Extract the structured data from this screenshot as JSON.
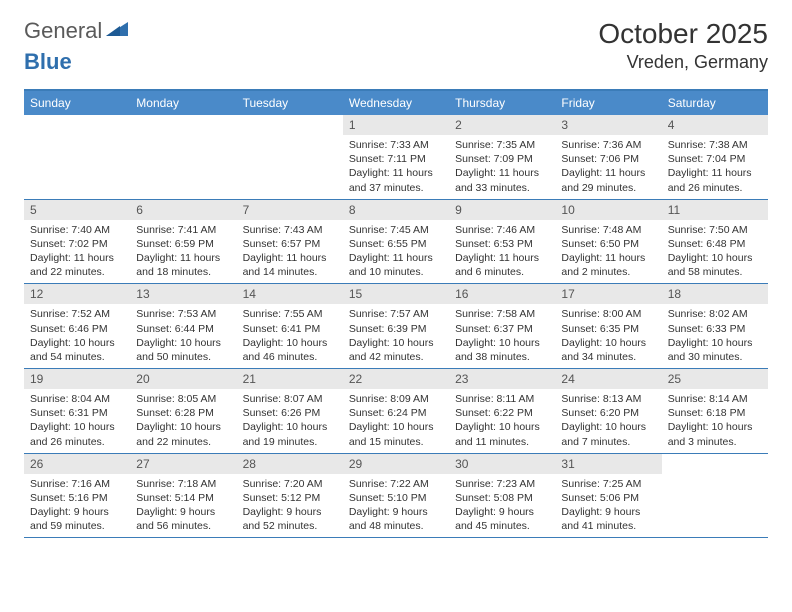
{
  "logo": {
    "text_gray": "General",
    "text_blue": "Blue",
    "gray_color": "#5a5a5a",
    "blue_color": "#2f6fad"
  },
  "title": {
    "month": "October 2025",
    "location": "Vreden, Germany"
  },
  "colors": {
    "header_bg": "#4a8ac9",
    "header_border": "#3b7cb8",
    "date_bg": "#e8e8e8",
    "text": "#333333"
  },
  "day_names": [
    "Sunday",
    "Monday",
    "Tuesday",
    "Wednesday",
    "Thursday",
    "Friday",
    "Saturday"
  ],
  "weeks": [
    [
      {
        "date": "",
        "sunrise": "",
        "sunset": "",
        "daylight": ""
      },
      {
        "date": "",
        "sunrise": "",
        "sunset": "",
        "daylight": ""
      },
      {
        "date": "",
        "sunrise": "",
        "sunset": "",
        "daylight": ""
      },
      {
        "date": "1",
        "sunrise": "Sunrise: 7:33 AM",
        "sunset": "Sunset: 7:11 PM",
        "daylight": "Daylight: 11 hours and 37 minutes."
      },
      {
        "date": "2",
        "sunrise": "Sunrise: 7:35 AM",
        "sunset": "Sunset: 7:09 PM",
        "daylight": "Daylight: 11 hours and 33 minutes."
      },
      {
        "date": "3",
        "sunrise": "Sunrise: 7:36 AM",
        "sunset": "Sunset: 7:06 PM",
        "daylight": "Daylight: 11 hours and 29 minutes."
      },
      {
        "date": "4",
        "sunrise": "Sunrise: 7:38 AM",
        "sunset": "Sunset: 7:04 PM",
        "daylight": "Daylight: 11 hours and 26 minutes."
      }
    ],
    [
      {
        "date": "5",
        "sunrise": "Sunrise: 7:40 AM",
        "sunset": "Sunset: 7:02 PM",
        "daylight": "Daylight: 11 hours and 22 minutes."
      },
      {
        "date": "6",
        "sunrise": "Sunrise: 7:41 AM",
        "sunset": "Sunset: 6:59 PM",
        "daylight": "Daylight: 11 hours and 18 minutes."
      },
      {
        "date": "7",
        "sunrise": "Sunrise: 7:43 AM",
        "sunset": "Sunset: 6:57 PM",
        "daylight": "Daylight: 11 hours and 14 minutes."
      },
      {
        "date": "8",
        "sunrise": "Sunrise: 7:45 AM",
        "sunset": "Sunset: 6:55 PM",
        "daylight": "Daylight: 11 hours and 10 minutes."
      },
      {
        "date": "9",
        "sunrise": "Sunrise: 7:46 AM",
        "sunset": "Sunset: 6:53 PM",
        "daylight": "Daylight: 11 hours and 6 minutes."
      },
      {
        "date": "10",
        "sunrise": "Sunrise: 7:48 AM",
        "sunset": "Sunset: 6:50 PM",
        "daylight": "Daylight: 11 hours and 2 minutes."
      },
      {
        "date": "11",
        "sunrise": "Sunrise: 7:50 AM",
        "sunset": "Sunset: 6:48 PM",
        "daylight": "Daylight: 10 hours and 58 minutes."
      }
    ],
    [
      {
        "date": "12",
        "sunrise": "Sunrise: 7:52 AM",
        "sunset": "Sunset: 6:46 PM",
        "daylight": "Daylight: 10 hours and 54 minutes."
      },
      {
        "date": "13",
        "sunrise": "Sunrise: 7:53 AM",
        "sunset": "Sunset: 6:44 PM",
        "daylight": "Daylight: 10 hours and 50 minutes."
      },
      {
        "date": "14",
        "sunrise": "Sunrise: 7:55 AM",
        "sunset": "Sunset: 6:41 PM",
        "daylight": "Daylight: 10 hours and 46 minutes."
      },
      {
        "date": "15",
        "sunrise": "Sunrise: 7:57 AM",
        "sunset": "Sunset: 6:39 PM",
        "daylight": "Daylight: 10 hours and 42 minutes."
      },
      {
        "date": "16",
        "sunrise": "Sunrise: 7:58 AM",
        "sunset": "Sunset: 6:37 PM",
        "daylight": "Daylight: 10 hours and 38 minutes."
      },
      {
        "date": "17",
        "sunrise": "Sunrise: 8:00 AM",
        "sunset": "Sunset: 6:35 PM",
        "daylight": "Daylight: 10 hours and 34 minutes."
      },
      {
        "date": "18",
        "sunrise": "Sunrise: 8:02 AM",
        "sunset": "Sunset: 6:33 PM",
        "daylight": "Daylight: 10 hours and 30 minutes."
      }
    ],
    [
      {
        "date": "19",
        "sunrise": "Sunrise: 8:04 AM",
        "sunset": "Sunset: 6:31 PM",
        "daylight": "Daylight: 10 hours and 26 minutes."
      },
      {
        "date": "20",
        "sunrise": "Sunrise: 8:05 AM",
        "sunset": "Sunset: 6:28 PM",
        "daylight": "Daylight: 10 hours and 22 minutes."
      },
      {
        "date": "21",
        "sunrise": "Sunrise: 8:07 AM",
        "sunset": "Sunset: 6:26 PM",
        "daylight": "Daylight: 10 hours and 19 minutes."
      },
      {
        "date": "22",
        "sunrise": "Sunrise: 8:09 AM",
        "sunset": "Sunset: 6:24 PM",
        "daylight": "Daylight: 10 hours and 15 minutes."
      },
      {
        "date": "23",
        "sunrise": "Sunrise: 8:11 AM",
        "sunset": "Sunset: 6:22 PM",
        "daylight": "Daylight: 10 hours and 11 minutes."
      },
      {
        "date": "24",
        "sunrise": "Sunrise: 8:13 AM",
        "sunset": "Sunset: 6:20 PM",
        "daylight": "Daylight: 10 hours and 7 minutes."
      },
      {
        "date": "25",
        "sunrise": "Sunrise: 8:14 AM",
        "sunset": "Sunset: 6:18 PM",
        "daylight": "Daylight: 10 hours and 3 minutes."
      }
    ],
    [
      {
        "date": "26",
        "sunrise": "Sunrise: 7:16 AM",
        "sunset": "Sunset: 5:16 PM",
        "daylight": "Daylight: 9 hours and 59 minutes."
      },
      {
        "date": "27",
        "sunrise": "Sunrise: 7:18 AM",
        "sunset": "Sunset: 5:14 PM",
        "daylight": "Daylight: 9 hours and 56 minutes."
      },
      {
        "date": "28",
        "sunrise": "Sunrise: 7:20 AM",
        "sunset": "Sunset: 5:12 PM",
        "daylight": "Daylight: 9 hours and 52 minutes."
      },
      {
        "date": "29",
        "sunrise": "Sunrise: 7:22 AM",
        "sunset": "Sunset: 5:10 PM",
        "daylight": "Daylight: 9 hours and 48 minutes."
      },
      {
        "date": "30",
        "sunrise": "Sunrise: 7:23 AM",
        "sunset": "Sunset: 5:08 PM",
        "daylight": "Daylight: 9 hours and 45 minutes."
      },
      {
        "date": "31",
        "sunrise": "Sunrise: 7:25 AM",
        "sunset": "Sunset: 5:06 PM",
        "daylight": "Daylight: 9 hours and 41 minutes."
      },
      {
        "date": "",
        "sunrise": "",
        "sunset": "",
        "daylight": ""
      }
    ]
  ]
}
